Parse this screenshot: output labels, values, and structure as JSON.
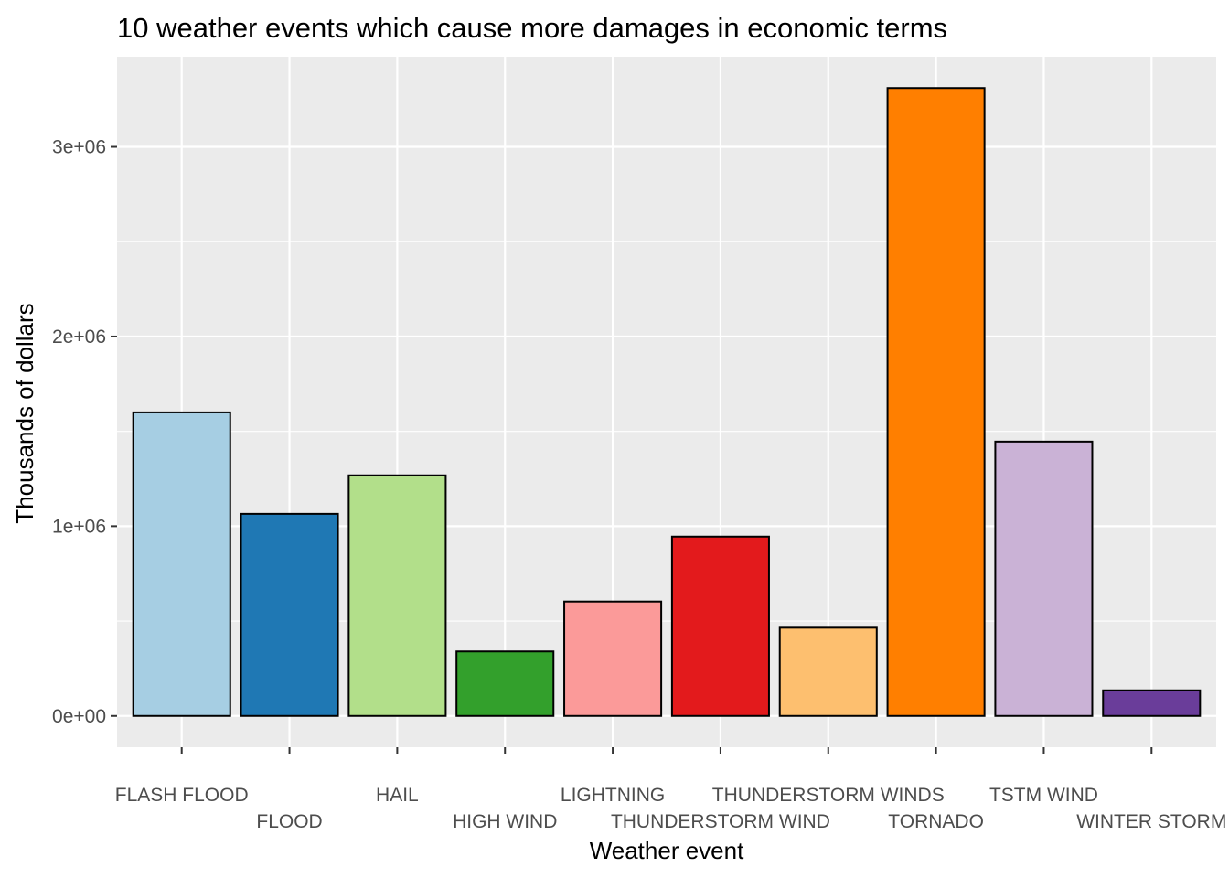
{
  "chart_data": {
    "type": "bar",
    "title": "10 weather events which cause more damages in economic terms",
    "xlabel": "Weather event",
    "ylabel": "Thousands of dollars",
    "categories": [
      "FLASH FLOOD",
      "FLOOD",
      "HAIL",
      "HIGH WIND",
      "LIGHTNING",
      "THUNDERSTORM WIND",
      "THUNDERSTORM WINDS",
      "TORNADO",
      "TSTM WIND",
      "WINTER STORM"
    ],
    "values": [
      1600000,
      1065000,
      1268000,
      340000,
      603000,
      945000,
      465000,
      3310000,
      1446000,
      135000
    ],
    "colors": [
      "#a6cee3",
      "#1f78b4",
      "#b2df8a",
      "#33a02c",
      "#fb9a99",
      "#e31a1c",
      "#fdbf6f",
      "#ff7f00",
      "#cab2d6",
      "#6a3d9a"
    ],
    "yticks": [
      {
        "value": 0,
        "label": "0e+00"
      },
      {
        "value": 1000000,
        "label": "1e+06"
      },
      {
        "value": 2000000,
        "label": "2e+06"
      },
      {
        "value": 3000000,
        "label": "3e+06"
      }
    ],
    "ylim": [
      -165000,
      3475000
    ],
    "grid": true,
    "legend": "none"
  }
}
